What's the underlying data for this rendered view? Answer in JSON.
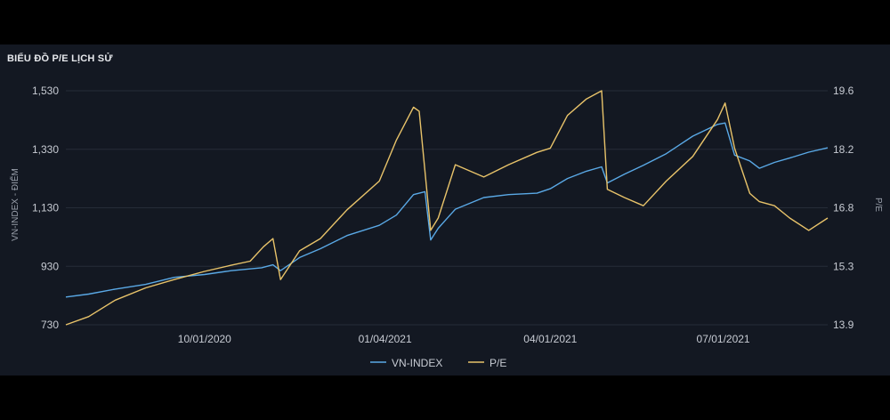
{
  "chart_title": "BIỂU ĐỒ P/E LỊCH SỬ",
  "chart_data": {
    "type": "line",
    "title": "BIỂU ĐỒ P/E LỊCH SỬ",
    "ylabel_left": "VN-INDEX - ĐIỂM",
    "ylabel_right": "P/E",
    "y_left_ticks": [
      "730",
      "930",
      "1,130",
      "1,330",
      "1,530"
    ],
    "y_left_range": [
      730,
      1530
    ],
    "y_right_ticks": [
      "13.9",
      "15.3",
      "16.8",
      "18.2",
      "19.6"
    ],
    "y_right_range": [
      13.9,
      19.6
    ],
    "x_ticks": [
      "10/01/2020",
      "01/04/2021",
      "04/01/2021",
      "07/01/2021"
    ],
    "x_range": [
      "2020-07-20",
      "2021-08-25"
    ],
    "grid": true,
    "legend_position": "bottom",
    "series": [
      {
        "name": "VN-INDEX",
        "axis": "left",
        "color": "#5aa9e6",
        "points": [
          [
            "2020-07-20",
            825
          ],
          [
            "2020-08-01",
            835
          ],
          [
            "2020-08-15",
            852
          ],
          [
            "2020-08-31",
            868
          ],
          [
            "2020-09-15",
            892
          ],
          [
            "2020-10-01",
            902
          ],
          [
            "2020-10-15",
            915
          ],
          [
            "2020-10-31",
            925
          ],
          [
            "2020-11-06",
            935
          ],
          [
            "2020-11-10",
            915
          ],
          [
            "2020-11-20",
            960
          ],
          [
            "2020-12-01",
            990
          ],
          [
            "2020-12-15",
            1035
          ],
          [
            "2021-01-01",
            1070
          ],
          [
            "2021-01-10",
            1105
          ],
          [
            "2021-01-19",
            1175
          ],
          [
            "2021-01-25",
            1185
          ],
          [
            "2021-01-28",
            1020
          ],
          [
            "2021-02-01",
            1060
          ],
          [
            "2021-02-10",
            1125
          ],
          [
            "2021-02-25",
            1165
          ],
          [
            "2021-03-10",
            1175
          ],
          [
            "2021-03-25",
            1180
          ],
          [
            "2021-04-01",
            1195
          ],
          [
            "2021-04-10",
            1230
          ],
          [
            "2021-04-20",
            1255
          ],
          [
            "2021-04-28",
            1270
          ],
          [
            "2021-05-01",
            1215
          ],
          [
            "2021-05-10",
            1245
          ],
          [
            "2021-05-20",
            1275
          ],
          [
            "2021-06-01",
            1315
          ],
          [
            "2021-06-15",
            1375
          ],
          [
            "2021-06-28",
            1415
          ],
          [
            "2021-07-02",
            1420
          ],
          [
            "2021-07-07",
            1310
          ],
          [
            "2021-07-15",
            1290
          ],
          [
            "2021-07-20",
            1265
          ],
          [
            "2021-07-28",
            1285
          ],
          [
            "2021-08-05",
            1300
          ],
          [
            "2021-08-15",
            1320
          ],
          [
            "2021-08-25",
            1335
          ]
        ]
      },
      {
        "name": "P/E",
        "axis": "right",
        "color": "#e8c36a",
        "points": [
          [
            "2020-07-20",
            13.9
          ],
          [
            "2020-08-01",
            14.1
          ],
          [
            "2020-08-15",
            14.5
          ],
          [
            "2020-08-31",
            14.8
          ],
          [
            "2020-09-15",
            15.0
          ],
          [
            "2020-10-01",
            15.2
          ],
          [
            "2020-10-15",
            15.35
          ],
          [
            "2020-10-25",
            15.45
          ],
          [
            "2020-11-01",
            15.8
          ],
          [
            "2020-11-06",
            16.0
          ],
          [
            "2020-11-10",
            15.0
          ],
          [
            "2020-11-20",
            15.7
          ],
          [
            "2020-12-01",
            16.0
          ],
          [
            "2020-12-15",
            16.7
          ],
          [
            "2021-01-01",
            17.4
          ],
          [
            "2021-01-10",
            18.4
          ],
          [
            "2021-01-19",
            19.2
          ],
          [
            "2021-01-22",
            19.1
          ],
          [
            "2021-01-28",
            16.2
          ],
          [
            "2021-02-01",
            16.5
          ],
          [
            "2021-02-10",
            17.8
          ],
          [
            "2021-02-25",
            17.5
          ],
          [
            "2021-03-10",
            17.8
          ],
          [
            "2021-03-25",
            18.1
          ],
          [
            "2021-04-01",
            18.2
          ],
          [
            "2021-04-10",
            19.0
          ],
          [
            "2021-04-20",
            19.4
          ],
          [
            "2021-04-28",
            19.6
          ],
          [
            "2021-05-01",
            17.2
          ],
          [
            "2021-05-10",
            17.0
          ],
          [
            "2021-05-20",
            16.8
          ],
          [
            "2021-06-01",
            17.4
          ],
          [
            "2021-06-15",
            18.0
          ],
          [
            "2021-06-28",
            18.9
          ],
          [
            "2021-07-02",
            19.3
          ],
          [
            "2021-07-07",
            18.2
          ],
          [
            "2021-07-15",
            17.1
          ],
          [
            "2021-07-20",
            16.9
          ],
          [
            "2021-07-28",
            16.8
          ],
          [
            "2021-08-05",
            16.5
          ],
          [
            "2021-08-15",
            16.2
          ],
          [
            "2021-08-25",
            16.5
          ]
        ]
      }
    ]
  }
}
